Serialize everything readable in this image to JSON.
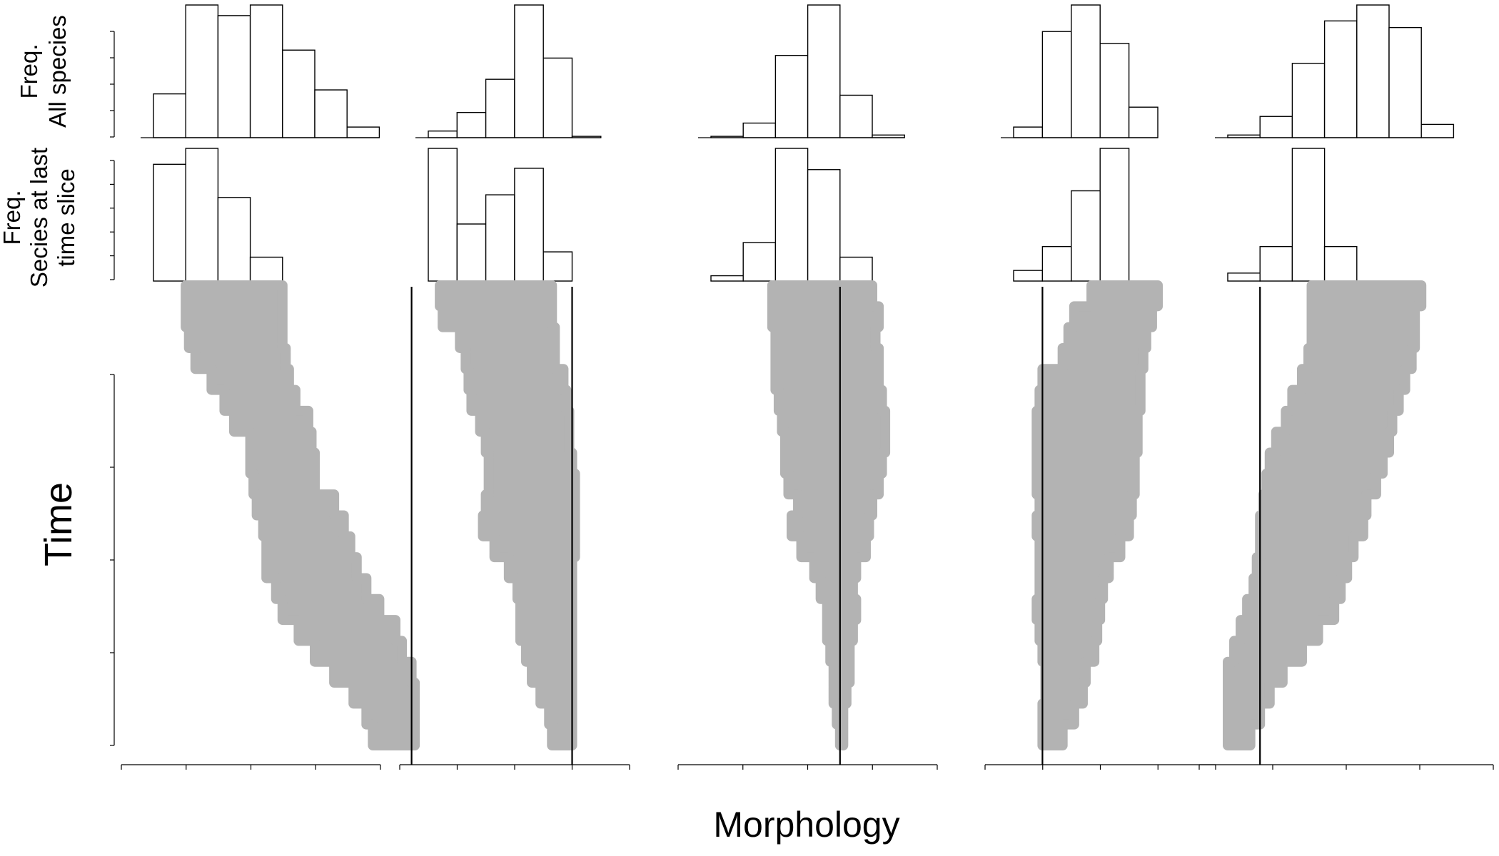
{
  "labels": {
    "row1_line1": "Freq.",
    "row1_line2": "All species",
    "row2_line1": "Freq.",
    "row2_line2": "Secies at last",
    "row2_line3": "time slice",
    "y_axis": "Time",
    "x_axis": "Morphology"
  },
  "colors": {
    "band": "#b3b3b3",
    "bar_fill": "#ffffff",
    "stroke": "#000000"
  },
  "chart_data": [
    {
      "type": "bar",
      "panel": 1,
      "x_ticks": 5,
      "vertical_line_bin": 8,
      "all_species_freq": [
        0.33,
        1.0,
        0.92,
        1.0,
        0.66,
        0.36,
        0.08
      ],
      "last_slice_freq": [
        0.88,
        1.0,
        0.63,
        0.18
      ],
      "time_band": {
        "start_bin": [
          1.0,
          1.0,
          1.1,
          1.3,
          1.8,
          2.2,
          2.5,
          3.0,
          3.0,
          3.1,
          3.2,
          3.4,
          3.5,
          3.5,
          3.8,
          4.0,
          4.5,
          5.0,
          5.6,
          6.2,
          6.6,
          6.8
        ],
        "end_bin": [
          4.0,
          4.0,
          4.0,
          4.1,
          4.2,
          4.4,
          4.8,
          4.9,
          5.0,
          5.0,
          5.6,
          5.9,
          6.1,
          6.3,
          6.6,
          7.0,
          7.5,
          7.7,
          8.0,
          8.1,
          8.1,
          8.1
        ]
      }
    },
    {
      "type": "bar",
      "panel": 2,
      "x_ticks": 5,
      "vertical_line_bin": 5,
      "all_species_freq": [
        0.05,
        0.19,
        0.44,
        1.0,
        0.6,
        0.01
      ],
      "last_slice_freq": [
        1.0,
        0.43,
        0.65,
        0.85,
        0.22
      ],
      "time_band": {
        "start_bin": [
          0.4,
          0.5,
          1.1,
          1.3,
          1.4,
          1.5,
          1.8,
          2.0,
          2.1,
          2.1,
          2.0,
          1.9,
          2.3,
          2.8,
          3.1,
          3.2,
          3.2,
          3.4,
          3.6,
          3.9,
          4.2,
          4.3
        ],
        "end_bin": [
          4.3,
          4.3,
          4.4,
          4.4,
          4.7,
          4.8,
          4.9,
          4.9,
          5.0,
          5.1,
          5.1,
          5.1,
          5.1,
          5.0,
          5.0,
          5.0,
          5.0,
          5.0,
          5.0,
          5.0,
          5.0,
          5.0
        ]
      }
    },
    {
      "type": "bar",
      "panel": 3,
      "x_ticks": 5,
      "vertical_line_bin": 4,
      "all_species_freq": [
        0.01,
        0.11,
        0.62,
        1.0,
        0.32,
        0.02
      ],
      "last_slice_freq": [
        0.04,
        0.29,
        1.0,
        0.84,
        0.18
      ],
      "time_band": {
        "start_bin": [
          1.9,
          1.9,
          2.0,
          2.0,
          2.0,
          2.1,
          2.2,
          2.3,
          2.3,
          2.4,
          2.7,
          2.5,
          2.8,
          3.2,
          3.4,
          3.6,
          3.6,
          3.7,
          3.8,
          3.8,
          3.9,
          4.0
        ],
        "end_bin": [
          5.0,
          5.2,
          5.1,
          5.2,
          5.2,
          5.3,
          5.4,
          5.4,
          5.3,
          5.2,
          5.0,
          4.9,
          4.8,
          4.5,
          4.4,
          4.5,
          4.4,
          4.3,
          4.3,
          4.2,
          4.1,
          4.1
        ]
      }
    },
    {
      "type": "bar",
      "panel": 4,
      "x_ticks": 5,
      "vertical_line_bin": 1,
      "all_species_freq": [
        0.08,
        0.8,
        1.0,
        0.71,
        0.23
      ],
      "last_slice_freq": [
        0.08,
        0.26,
        0.68,
        1.0
      ],
      "time_band": {
        "start_bin": [
          2.7,
          2.1,
          1.9,
          1.7,
          1.0,
          0.9,
          0.8,
          0.8,
          0.8,
          0.8,
          0.9,
          0.8,
          0.9,
          0.9,
          0.9,
          0.8,
          0.9,
          1.0,
          1.1,
          1.1,
          1.0,
          1.0
        ],
        "end_bin": [
          5.0,
          4.8,
          4.6,
          4.5,
          4.4,
          4.4,
          4.3,
          4.3,
          4.2,
          4.2,
          4.1,
          4.0,
          3.7,
          3.3,
          3.1,
          3.0,
          2.9,
          2.8,
          2.5,
          2.4,
          2.1,
          1.7
        ]
      }
    },
    {
      "type": "bar",
      "panel": 5,
      "x_ticks": 5,
      "vertical_line_bin": 1,
      "all_species_freq": [
        0.02,
        0.16,
        0.56,
        0.88,
        1.0,
        0.83,
        0.1
      ],
      "last_slice_freq": [
        0.06,
        0.26,
        1.0,
        0.26
      ],
      "time_band": {
        "start_bin": [
          2.6,
          2.6,
          2.6,
          2.5,
          2.3,
          2.0,
          1.8,
          1.5,
          1.3,
          1.2,
          1.1,
          1.0,
          1.0,
          0.9,
          0.8,
          0.6,
          0.4,
          0.2,
          0.0,
          0.0,
          0.0,
          0.0
        ],
        "end_bin": [
          6.0,
          5.8,
          5.8,
          5.7,
          5.5,
          5.3,
          5.1,
          5.0,
          4.8,
          4.6,
          4.3,
          4.2,
          3.9,
          3.7,
          3.5,
          3.3,
          2.8,
          2.3,
          1.7,
          1.3,
          1.0,
          0.7
        ]
      }
    }
  ]
}
